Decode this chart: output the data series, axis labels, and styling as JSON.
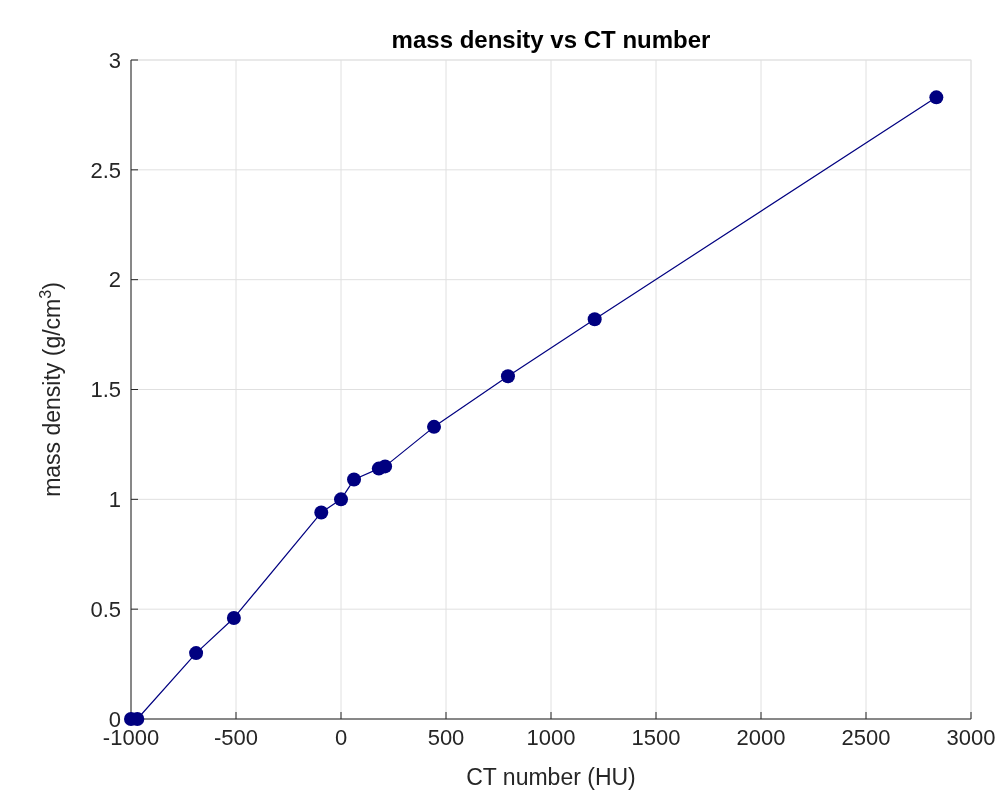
{
  "chart_data": {
    "type": "line",
    "title": "mass density vs CT number",
    "xlabel": "CT number (HU)",
    "ylabel": "mass density (g/cm$^{3}$)",
    "x": [
      -1000,
      -970,
      -690,
      -510,
      -94,
      0,
      62,
      180,
      210,
      443,
      795,
      1208,
      2835
    ],
    "series": [
      {
        "color": "#000080",
        "values": [
          0,
          0,
          0.3,
          0.46,
          0.94,
          1.0,
          1.09,
          1.14,
          1.15,
          1.33,
          1.56,
          1.82,
          2.83
        ]
      }
    ],
    "xlim": [
      -1000,
      3000
    ],
    "xticks": [
      -1000,
      -500,
      0,
      500,
      1000,
      1500,
      2000,
      2500,
      3000
    ],
    "ylim": [
      0,
      3
    ],
    "yticks": [
      0,
      0.5,
      1,
      1.5,
      2,
      2.5,
      3
    ],
    "grid": true,
    "marker": "circle",
    "line_style": "solid"
  }
}
